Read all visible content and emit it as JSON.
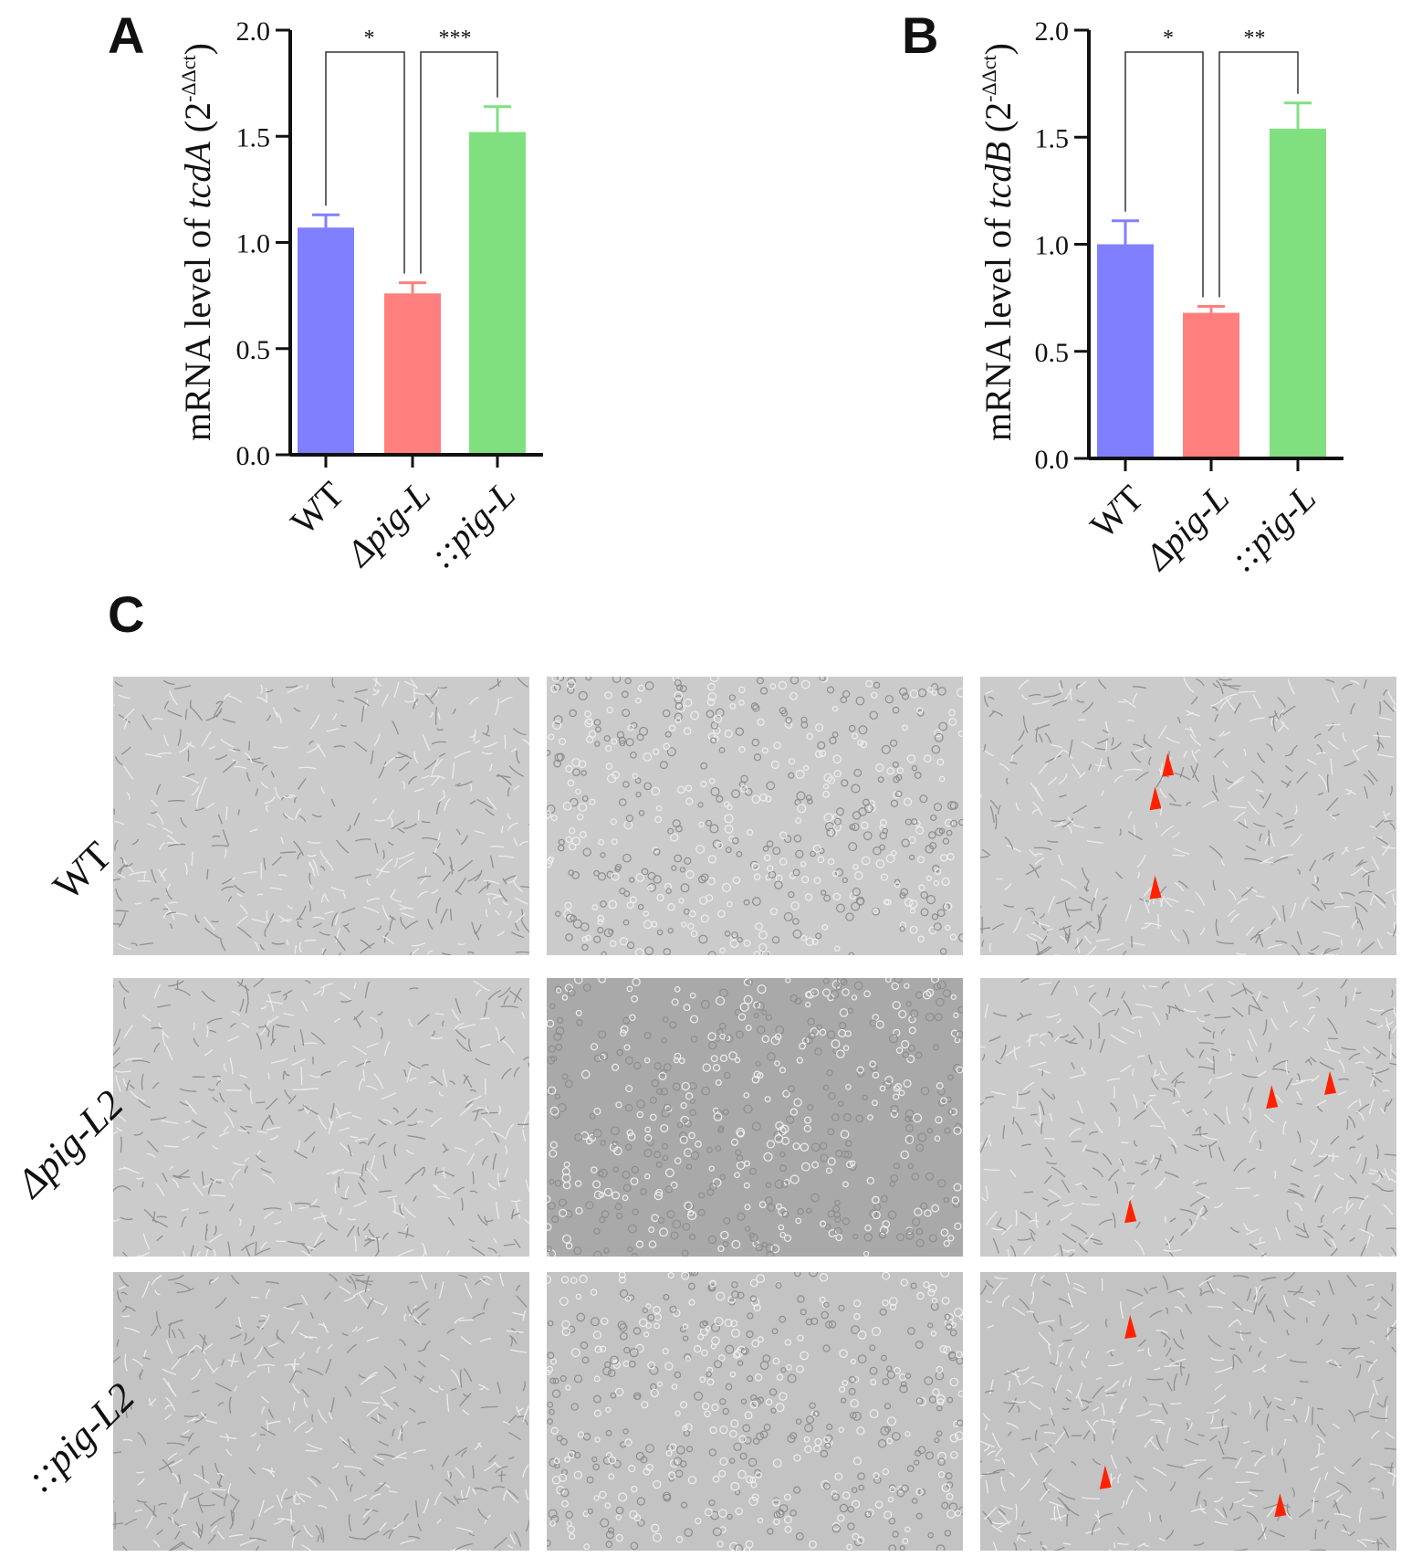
{
  "panels": {
    "A": "A",
    "B": "B",
    "C": "C"
  },
  "chart_data": [
    {
      "type": "bar",
      "panel": "A",
      "categories": [
        "WT",
        "Δpig-L",
        "::pig-L"
      ],
      "values": [
        1.07,
        0.76,
        1.52
      ],
      "errors": [
        0.06,
        0.05,
        0.12
      ],
      "colors": [
        "#8080ff",
        "#ff7f7f",
        "#80e080"
      ],
      "ylabel": "mRNA level of tcdA (2-ΔΔct)",
      "ylabel_parts": {
        "prefix": "mRNA level of ",
        "gene": "tcdA",
        "open": " (2",
        "sup": "-ΔΔct",
        "close": ")"
      },
      "ylim": [
        0,
        2.0
      ],
      "yticks": [
        "0.0",
        "0.5",
        "1.0",
        "1.5",
        "2.0"
      ],
      "significance": [
        {
          "from": 0,
          "to": 1,
          "label": "*"
        },
        {
          "from": 1,
          "to": 2,
          "label": "***"
        }
      ]
    },
    {
      "type": "bar",
      "panel": "B",
      "categories": [
        "WT",
        "Δpig-L",
        "::pig-L"
      ],
      "values": [
        1.0,
        0.68,
        1.54
      ],
      "errors": [
        0.11,
        0.03,
        0.12
      ],
      "colors": [
        "#8080ff",
        "#ff7f7f",
        "#80e080"
      ],
      "ylabel": "mRNA level of tcdB (2-ΔΔct)",
      "ylabel_parts": {
        "prefix": "mRNA level of ",
        "gene": "tcdB",
        "open": " (2",
        "sup": "-ΔΔct",
        "close": ")"
      },
      "ylim": [
        0,
        2.0
      ],
      "yticks": [
        "0.0",
        "0.5",
        "1.0",
        "1.5",
        "2.0"
      ],
      "significance": [
        {
          "from": 0,
          "to": 1,
          "label": "*"
        },
        {
          "from": 1,
          "to": 2,
          "label": "**"
        }
      ]
    }
  ],
  "micrographs": {
    "row_labels": [
      "WT",
      "Δpig-L2",
      "::pig-L2"
    ],
    "arrow_color": "#ff2200",
    "arrow_counts": [
      [
        0,
        0,
        3
      ],
      [
        0,
        0,
        3
      ],
      [
        0,
        0,
        3
      ]
    ]
  }
}
